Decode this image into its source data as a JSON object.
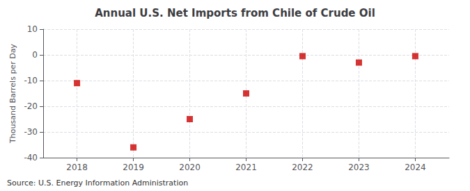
{
  "chart_data": {
    "type": "scatter",
    "title": "Annual U.S. Net Imports from Chile of Crude Oil",
    "ylabel": "Thousand Barrels per Day",
    "annotations": [
      "Source: U.S. Energy Information Administration"
    ],
    "x": [
      2018,
      2019,
      2020,
      2021,
      2022,
      2023,
      2024
    ],
    "values": [
      -11,
      -36,
      -25,
      -15,
      -0.5,
      -3,
      -0.5
    ],
    "color": "#cc0000",
    "marker": "square",
    "xlim": [
      2017.4,
      2024.6
    ],
    "xticks": [
      2018,
      2019,
      2020,
      2021,
      2022,
      2023,
      2024
    ],
    "ylim": [
      -40,
      10
    ],
    "yticks": [
      -40,
      -30,
      -20,
      -10,
      0,
      10
    ],
    "grid": true
  }
}
